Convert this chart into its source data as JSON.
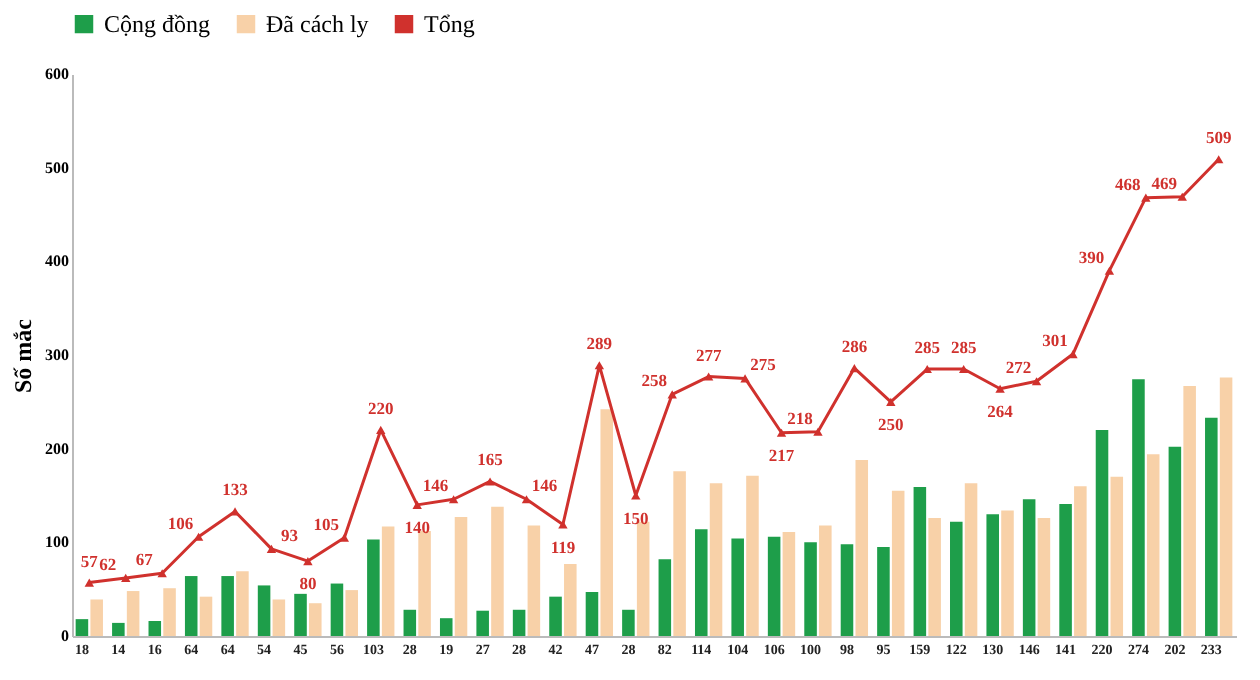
{
  "chart_data": {
    "type": "bar",
    "ylabel": "Số mắc",
    "categories": [
      null,
      null,
      null,
      null,
      null,
      null,
      null,
      null,
      null,
      null,
      null,
      null,
      null,
      null,
      null,
      null,
      null,
      null,
      null,
      null,
      null,
      null,
      null,
      null,
      null,
      null,
      null,
      null,
      null,
      null,
      null,
      null
    ],
    "series": [
      {
        "name": "Cộng đồng",
        "color": "#1e9e4a",
        "values": [
          18,
          14,
          16,
          64,
          64,
          54,
          45,
          56,
          103,
          28,
          19,
          27,
          28,
          42,
          47,
          28,
          82,
          114,
          104,
          106,
          100,
          98,
          95,
          159,
          122,
          130,
          146,
          141,
          220,
          274,
          202,
          233
        ],
        "value_labels": [
          "18",
          "14",
          "16",
          "64",
          "64",
          "54",
          "45",
          "56",
          "103",
          "28",
          "19",
          "27",
          "28",
          "42",
          "47",
          "28",
          "82",
          "114",
          "104",
          "106",
          "100",
          "98",
          "95",
          "159",
          "122",
          "130",
          "146",
          "141",
          "220",
          "274",
          "202",
          "233"
        ]
      },
      {
        "name": "Đã cách ly",
        "color": "#f8d1a8",
        "values": [
          39,
          48,
          51,
          42,
          69,
          39,
          35,
          49,
          117,
          112,
          127,
          138,
          118,
          77,
          242,
          122,
          176,
          163,
          171,
          111,
          118,
          188,
          155,
          126,
          163,
          134,
          126,
          160,
          170,
          194,
          267,
          276
        ]
      },
      {
        "name": "Tổng",
        "type": "line",
        "color": "#d0312d",
        "marker": "triangle",
        "values": [
          57,
          62,
          67,
          106,
          133,
          93,
          80,
          105,
          220,
          140,
          146,
          165,
          146,
          119,
          289,
          150,
          258,
          277,
          275,
          217,
          218,
          286,
          250,
          285,
          285,
          264,
          272,
          301,
          390,
          468,
          469,
          509
        ],
        "value_labels": [
          "57",
          "62",
          "67",
          "106",
          "133",
          "93",
          "80",
          "105",
          "220",
          "140",
          "146",
          "165",
          "146",
          "119",
          "289",
          "150",
          "258",
          "277",
          "275",
          "217",
          "218",
          "286",
          "250",
          "285",
          "285",
          "264",
          "272",
          "301",
          "390",
          "468",
          "469",
          "509"
        ]
      }
    ],
    "ylim": [
      0,
      600
    ],
    "yticks": [
      0,
      100,
      200,
      300,
      400,
      500,
      600
    ],
    "grid": false,
    "legend": "top",
    "tick_labels": "y"
  }
}
